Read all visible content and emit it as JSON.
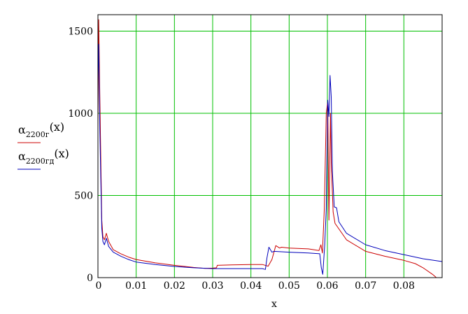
{
  "chart_data": {
    "type": "line",
    "xlabel": "x",
    "xlim": [
      0,
      0.09
    ],
    "ylim": [
      0,
      1600
    ],
    "xticks": [
      "0",
      "0.01",
      "0.02",
      "0.03",
      "0.04",
      "0.05",
      "0.06",
      "0.07",
      "0.08"
    ],
    "yticks": [
      "0",
      "500",
      "1000",
      "1500"
    ],
    "grid": true,
    "grid_color": "#00c000",
    "legend_position": "left",
    "series": [
      {
        "name": "α2200г(x)",
        "legend_symbol": "α",
        "legend_subscript": "2200г",
        "legend_suffix": "(x)",
        "color": "#cc0000",
        "points": [
          [
            0.0,
            900
          ],
          [
            0.0002,
            1570
          ],
          [
            0.0005,
            1100
          ],
          [
            0.001,
            350
          ],
          [
            0.0013,
            250
          ],
          [
            0.0017,
            230
          ],
          [
            0.0022,
            270
          ],
          [
            0.0028,
            220
          ],
          [
            0.004,
            170
          ],
          [
            0.006,
            145
          ],
          [
            0.008,
            125
          ],
          [
            0.01,
            110
          ],
          [
            0.015,
            90
          ],
          [
            0.02,
            75
          ],
          [
            0.025,
            62
          ],
          [
            0.028,
            56
          ],
          [
            0.03,
            58
          ],
          [
            0.031,
            60
          ],
          [
            0.0312,
            75
          ],
          [
            0.035,
            78
          ],
          [
            0.04,
            80
          ],
          [
            0.043,
            80
          ],
          [
            0.0445,
            70
          ],
          [
            0.0455,
            110
          ],
          [
            0.0465,
            195
          ],
          [
            0.0475,
            180
          ],
          [
            0.048,
            185
          ],
          [
            0.05,
            180
          ],
          [
            0.055,
            175
          ],
          [
            0.0578,
            165
          ],
          [
            0.0583,
            200
          ],
          [
            0.0587,
            150
          ],
          [
            0.0592,
            420
          ],
          [
            0.0597,
            1000
          ],
          [
            0.0601,
            1070
          ],
          [
            0.0604,
            350
          ],
          [
            0.0608,
            1000
          ],
          [
            0.061,
            700
          ],
          [
            0.0615,
            400
          ],
          [
            0.062,
            330
          ],
          [
            0.065,
            230
          ],
          [
            0.07,
            160
          ],
          [
            0.075,
            130
          ],
          [
            0.08,
            105
          ],
          [
            0.083,
            85
          ],
          [
            0.085,
            60
          ],
          [
            0.0875,
            20
          ],
          [
            0.0885,
            0
          ]
        ]
      },
      {
        "name": "α2200гд(x)",
        "legend_symbol": "α",
        "legend_subscript": "2200гд",
        "legend_suffix": "(x)",
        "color": "#0000bb",
        "points": [
          [
            0.0,
            1200
          ],
          [
            0.0002,
            1420
          ],
          [
            0.0005,
            900
          ],
          [
            0.001,
            300
          ],
          [
            0.0013,
            220
          ],
          [
            0.0017,
            200
          ],
          [
            0.0022,
            240
          ],
          [
            0.0028,
            190
          ],
          [
            0.004,
            155
          ],
          [
            0.006,
            130
          ],
          [
            0.008,
            110
          ],
          [
            0.01,
            95
          ],
          [
            0.015,
            80
          ],
          [
            0.02,
            68
          ],
          [
            0.025,
            60
          ],
          [
            0.03,
            55
          ],
          [
            0.035,
            55
          ],
          [
            0.04,
            55
          ],
          [
            0.043,
            55
          ],
          [
            0.0438,
            50
          ],
          [
            0.0442,
            120
          ],
          [
            0.0447,
            185
          ],
          [
            0.0455,
            155
          ],
          [
            0.046,
            160
          ],
          [
            0.05,
            155
          ],
          [
            0.055,
            150
          ],
          [
            0.058,
            145
          ],
          [
            0.0584,
            60
          ],
          [
            0.0588,
            20
          ],
          [
            0.0593,
            200
          ],
          [
            0.0597,
            420
          ],
          [
            0.0601,
            1080
          ],
          [
            0.0604,
            980
          ],
          [
            0.0607,
            1230
          ],
          [
            0.061,
            1100
          ],
          [
            0.0613,
            650
          ],
          [
            0.0618,
            430
          ],
          [
            0.0624,
            425
          ],
          [
            0.063,
            340
          ],
          [
            0.065,
            270
          ],
          [
            0.07,
            200
          ],
          [
            0.075,
            165
          ],
          [
            0.08,
            140
          ],
          [
            0.085,
            115
          ],
          [
            0.09,
            98
          ]
        ]
      }
    ]
  }
}
